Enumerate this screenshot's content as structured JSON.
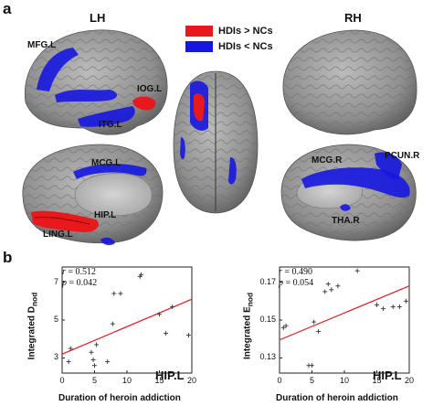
{
  "panel_a": {
    "letter": "a",
    "lh": "LH",
    "rh": "RH",
    "legend": [
      {
        "label": "HDIs > NCs",
        "color": "#e8191c"
      },
      {
        "label": "HDIs < NCs",
        "color": "#1616e0"
      }
    ],
    "regions": {
      "mfg": "MFG.L",
      "iog": "IOG.L",
      "itg": "ITG.L",
      "mcg_l": "MCG.L",
      "hip_l": "HIP.L",
      "ling": "LING.L",
      "mcg_r": "MCG.R",
      "pcun": "PCUN.R",
      "tha": "THA.R"
    }
  },
  "panel_b": {
    "letter": "b",
    "plots": [
      {
        "r_label": "r",
        "r_value": "= 0.512",
        "p_label": "p",
        "p_value": "= 0.042",
        "ylabel_main": "Integrated D",
        "ylabel_sub": "nod",
        "xlabel": "Duration of heroin addiction",
        "region": "HIP.L"
      },
      {
        "r_label": "r",
        "r_value": "= 0.490",
        "p_label": "p",
        "p_value": "= 0.054",
        "ylabel_main": "Integrated E",
        "ylabel_sub": "nod",
        "xlabel": "Duration of heroin addiction",
        "region": "HIP.L"
      }
    ]
  },
  "chart_data": [
    {
      "type": "scatter",
      "xlabel": "Duration of heroin addiction",
      "ylabel": "Integrated Dnod",
      "xlim": [
        0,
        20
      ],
      "ylim": [
        2.2,
        7.8
      ],
      "xticks": [
        "0",
        "5",
        "10",
        "15",
        "20"
      ],
      "yticks": [
        "3",
        "5",
        "7"
      ],
      "yticks_values": [
        3,
        5,
        7
      ],
      "points": [
        [
          1,
          2.8
        ],
        [
          1.3,
          3.5
        ],
        [
          4.5,
          3.3
        ],
        [
          4.8,
          2.9
        ],
        [
          5.0,
          2.6
        ],
        [
          5.3,
          3.7
        ],
        [
          7,
          2.8
        ],
        [
          7.8,
          4.8
        ],
        [
          8,
          6.4
        ],
        [
          9,
          6.4
        ],
        [
          12,
          7.3
        ],
        [
          12.2,
          7.4
        ],
        [
          15,
          5.3
        ],
        [
          16,
          4.3
        ],
        [
          17,
          5.7
        ],
        [
          19.5,
          4.2
        ]
      ],
      "fit_line": [
        [
          0,
          3.2
        ],
        [
          20,
          6.1
        ]
      ],
      "annotations": [
        "r = 0.512",
        "p = 0.042",
        "HIP.L"
      ]
    },
    {
      "type": "scatter",
      "xlabel": "Duration of heroin addiction",
      "ylabel": "Integrated Enod",
      "xlim": [
        0,
        20
      ],
      "ylim": [
        0.122,
        0.178
      ],
      "xticks": [
        "0",
        "5",
        "10",
        "15",
        "20"
      ],
      "yticks": [
        "0.13",
        "0.15",
        "0.17"
      ],
      "yticks_values": [
        0.13,
        0.15,
        0.17
      ],
      "points": [
        [
          0.6,
          0.146
        ],
        [
          1,
          0.147
        ],
        [
          4.5,
          0.126
        ],
        [
          5,
          0.126
        ],
        [
          5.3,
          0.149
        ],
        [
          6,
          0.144
        ],
        [
          7,
          0.165
        ],
        [
          7.5,
          0.169
        ],
        [
          8,
          0.166
        ],
        [
          9,
          0.168
        ],
        [
          12,
          0.176
        ],
        [
          15,
          0.158
        ],
        [
          16,
          0.156
        ],
        [
          17.5,
          0.157
        ],
        [
          18.5,
          0.157
        ],
        [
          19.5,
          0.16
        ]
      ],
      "fit_line": [
        [
          0,
          0.1395
        ],
        [
          20,
          0.168
        ]
      ],
      "annotations": [
        "r = 0.490",
        "p = 0.054",
        "HIP.L"
      ]
    }
  ]
}
